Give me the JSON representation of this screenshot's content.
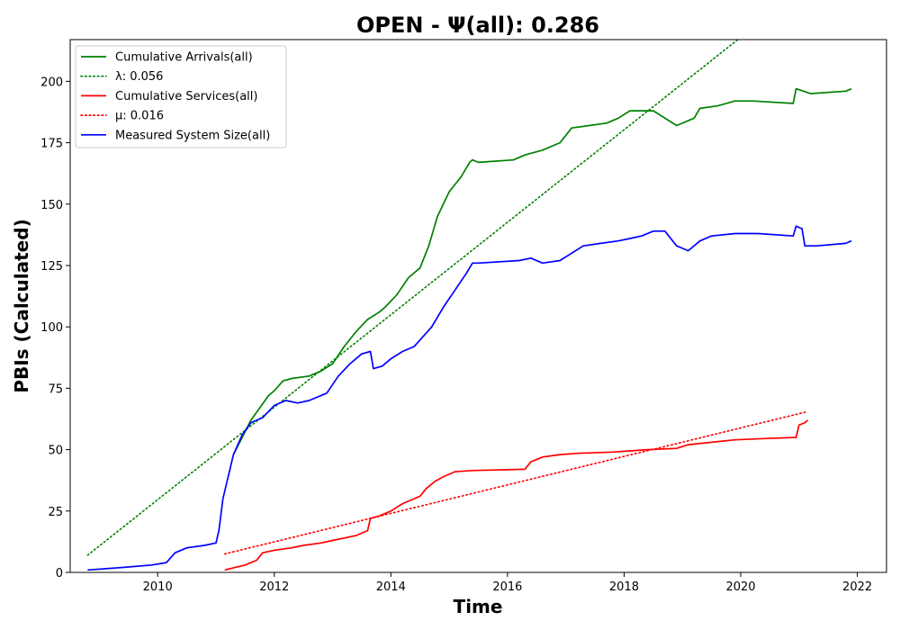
{
  "chart_data": {
    "type": "line",
    "title": "OPEN -  Ψ(all): 0.286",
    "xlabel": "Time",
    "ylabel": "PBIs (Calculated)",
    "xlim": [
      2008.5,
      2022.5
    ],
    "ylim": [
      0,
      217
    ],
    "xticks": [
      2010,
      2012,
      2014,
      2016,
      2018,
      2020,
      2022
    ],
    "yticks": [
      0,
      25,
      50,
      75,
      100,
      125,
      150,
      175,
      200
    ],
    "legend_position": "top-left",
    "grid": false,
    "series": [
      {
        "name": "Cumulative Arrivals(all)",
        "color": "#008000",
        "style": "solid",
        "x": [
          2011.3,
          2011.45,
          2011.6,
          2011.75,
          2011.9,
          2012.0,
          2012.15,
          2012.3,
          2012.6,
          2012.8,
          2013.0,
          2013.2,
          2013.4,
          2013.6,
          2013.8,
          2013.9,
          2014.1,
          2014.3,
          2014.5,
          2014.65,
          2014.8,
          2015.0,
          2015.2,
          2015.35,
          2015.4,
          2015.5,
          2016.1,
          2016.3,
          2016.6,
          2016.9,
          2017.1,
          2017.4,
          2017.7,
          2017.9,
          2018.1,
          2018.3,
          2018.5,
          2018.9,
          2019.2,
          2019.3,
          2019.6,
          2019.9,
          2020.2,
          2020.9,
          2020.95,
          2021.2,
          2021.8,
          2021.9
        ],
        "y": [
          48,
          55,
          62,
          67,
          72,
          74,
          78,
          79,
          80,
          82,
          85,
          92,
          98,
          103,
          106,
          108,
          113,
          120,
          124,
          133,
          145,
          155,
          161,
          167,
          168,
          167,
          168,
          170,
          172,
          175,
          181,
          182,
          183,
          185,
          188,
          188,
          188,
          182,
          185,
          189,
          190,
          192,
          192,
          191,
          197,
          195,
          196,
          197
        ]
      },
      {
        "name": "λ: 0.056",
        "color": "#008000",
        "style": "dotted",
        "x": [
          2008.8,
          2019.95
        ],
        "y": [
          7,
          217
        ]
      },
      {
        "name": "Cumulative Services(all)",
        "color": "#ff0000",
        "style": "solid",
        "x": [
          2011.15,
          2011.5,
          2011.7,
          2011.8,
          2012.0,
          2012.3,
          2012.5,
          2012.8,
          2013.0,
          2013.4,
          2013.6,
          2013.65,
          2013.8,
          2014.0,
          2014.2,
          2014.5,
          2014.6,
          2014.75,
          2014.9,
          2015.1,
          2015.4,
          2016.3,
          2016.4,
          2016.6,
          2016.9,
          2017.2,
          2017.8,
          2018.1,
          2018.4,
          2018.9,
          2019.1,
          2019.5,
          2019.9,
          2020.4,
          2020.95,
          2021.0,
          2021.1,
          2021.15
        ],
        "y": [
          1,
          3,
          5,
          8,
          9,
          10,
          11,
          12,
          13,
          15,
          17,
          22,
          23,
          25,
          28,
          31,
          34,
          37,
          39,
          41,
          41.5,
          42,
          45,
          47,
          48,
          48.5,
          49,
          49.5,
          50,
          50.5,
          52,
          53,
          54,
          54.5,
          55,
          60,
          61,
          62
        ]
      },
      {
        "name": "μ: 0.016",
        "color": "#ff0000",
        "style": "dotted",
        "x": [
          2011.15,
          2021.15
        ],
        "y": [
          7.5,
          65.5
        ]
      },
      {
        "name": "Measured System Size(all)",
        "color": "#0000ff",
        "style": "solid",
        "x": [
          2008.8,
          2009.4,
          2009.9,
          2010.15,
          2010.3,
          2010.5,
          2010.8,
          2011.0,
          2011.05,
          2011.12,
          2011.2,
          2011.3,
          2011.45,
          2011.6,
          2011.8,
          2012.0,
          2012.2,
          2012.4,
          2012.6,
          2012.9,
          2013.1,
          2013.3,
          2013.5,
          2013.65,
          2013.7,
          2013.85,
          2014.0,
          2014.2,
          2014.4,
          2014.55,
          2014.7,
          2014.9,
          2015.1,
          2015.3,
          2015.4,
          2015.5,
          2016.2,
          2016.4,
          2016.6,
          2016.9,
          2017.1,
          2017.3,
          2017.6,
          2017.9,
          2018.1,
          2018.3,
          2018.5,
          2018.7,
          2018.9,
          2019.1,
          2019.3,
          2019.5,
          2019.9,
          2020.3,
          2020.9,
          2020.95,
          2021.05,
          2021.1,
          2021.3,
          2021.8,
          2021.9
        ],
        "y": [
          1,
          2,
          3,
          4,
          8,
          10,
          11,
          12,
          17,
          30,
          38,
          48,
          56,
          61,
          63,
          68,
          70,
          69,
          70,
          73,
          80,
          85,
          89,
          90,
          83,
          84,
          87,
          90,
          92,
          96,
          100,
          108,
          115,
          122,
          126,
          126,
          127,
          128,
          126,
          127,
          130,
          133,
          134,
          135,
          136,
          137,
          139,
          139,
          133,
          131,
          135,
          137,
          138,
          138,
          137,
          141,
          140,
          133,
          133,
          134,
          135
        ]
      }
    ]
  }
}
